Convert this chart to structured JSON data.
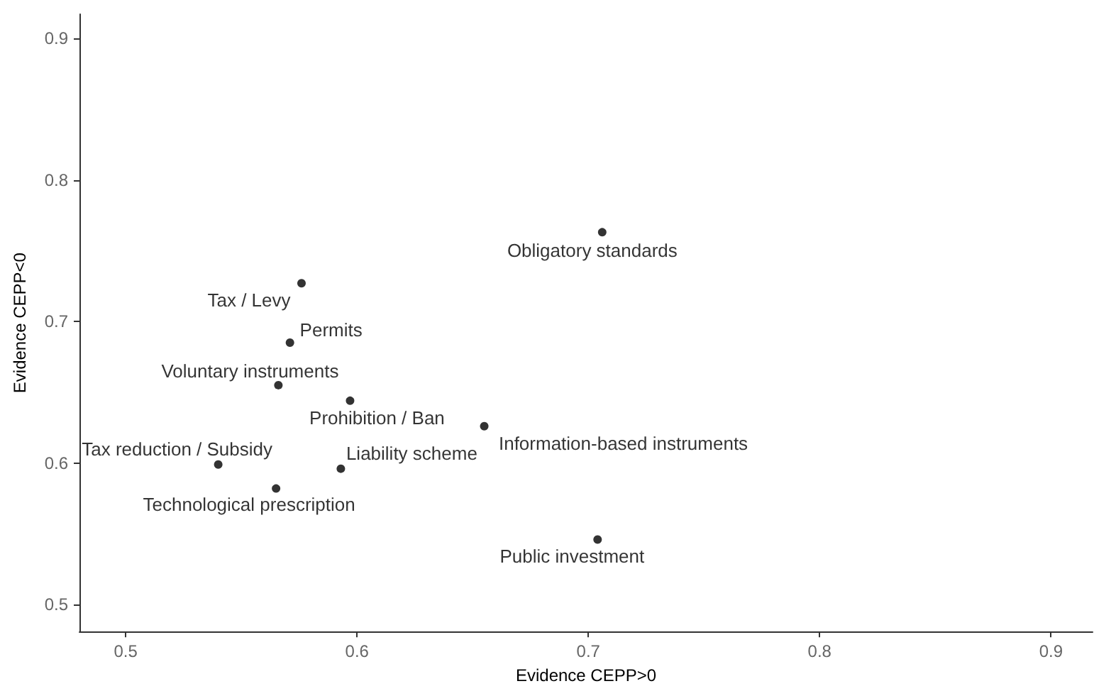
{
  "chart_data": {
    "type": "scatter",
    "xlabel": "Evidence CEPP>0",
    "ylabel": "Evidence CEPP<0",
    "x": [
      0.706,
      0.576,
      0.571,
      0.566,
      0.597,
      0.655,
      0.54,
      0.593,
      0.565,
      0.704
    ],
    "values": [
      0.763,
      0.727,
      0.685,
      0.655,
      0.644,
      0.626,
      0.599,
      0.596,
      0.582,
      0.546
    ],
    "color": "#000000",
    "marker": "circle",
    "grid": false,
    "xlim": [
      0.48,
      0.918
    ],
    "xticks": [
      0.5,
      0.6,
      0.7,
      0.8,
      0.9
    ],
    "ylim": [
      0.481,
      0.917
    ],
    "yticks": [
      0.5,
      0.6,
      0.7,
      0.8,
      0.9
    ],
    "annotations": [
      {
        "text": "Obligatory standards",
        "x": 0.706,
        "y": 0.763
      },
      {
        "text": "Tax / Levy",
        "x": 0.576,
        "y": 0.727
      },
      {
        "text": "Permits",
        "x": 0.571,
        "y": 0.685
      },
      {
        "text": "Voluntary instruments",
        "x": 0.566,
        "y": 0.655
      },
      {
        "text": "Prohibition / Ban",
        "x": 0.597,
        "y": 0.644
      },
      {
        "text": "Information-based instruments",
        "x": 0.655,
        "y": 0.626
      },
      {
        "text": "Tax reduction / Subsidy",
        "x": 0.54,
        "y": 0.599
      },
      {
        "text": "Liability scheme",
        "x": 0.593,
        "y": 0.596
      },
      {
        "text": "Technological prescription",
        "x": 0.565,
        "y": 0.582
      },
      {
        "text": "Public investment",
        "x": 0.704,
        "y": 0.546
      }
    ]
  }
}
